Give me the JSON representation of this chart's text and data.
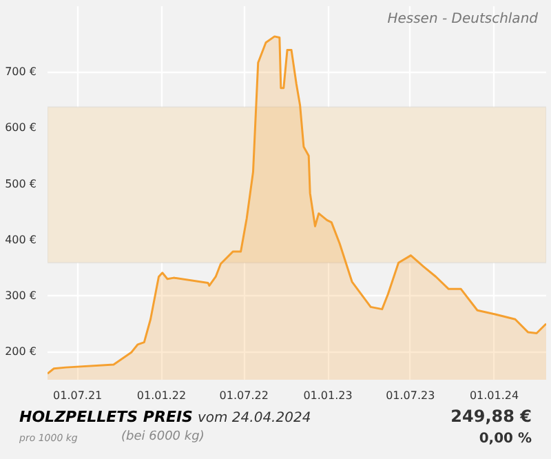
{
  "chart_data": {
    "type": "area",
    "title": "HOLZPELLETS PREIS",
    "subtitle": "vom 24.04.2024",
    "annotations": [
      "Hessen - Deutschland",
      "pro 1000 kg",
      "(bei 6000 kg)",
      "249,88 €",
      "0,00 %"
    ],
    "x": [
      "2021-04-26",
      "2021-05-10",
      "2021-06-05",
      "2021-09-18",
      "2021-10-27",
      "2021-11-10",
      "2021-11-24",
      "2021-12-08",
      "2021-12-26",
      "2022-01-03",
      "2022-01-14",
      "2022-01-28",
      "2022-04-13",
      "2022-04-16",
      "2022-04-30",
      "2022-05-11",
      "2022-06-07",
      "2022-06-24",
      "2022-07-07",
      "2022-07-21",
      "2022-08-01",
      "2022-08-18",
      "2022-09-06",
      "2022-09-17",
      "2022-09-20",
      "2022-09-26",
      "2022-10-04",
      "2022-10-13",
      "2022-10-24",
      "2022-11-01",
      "2022-11-09",
      "2022-11-20",
      "2022-11-23",
      "2022-12-04",
      "2022-12-12",
      "2022-12-30",
      "2023-01-09",
      "2023-01-27",
      "2023-02-23",
      "2023-04-05",
      "2023-04-30",
      "2023-05-13",
      "2023-06-05",
      "2023-07-02",
      "2023-07-30",
      "2023-08-26",
      "2023-09-23",
      "2023-10-20",
      "2023-11-25",
      "2024-01-03",
      "2024-02-16",
      "2024-03-15",
      "2024-04-03",
      "2024-04-24"
    ],
    "series": [
      {
        "color": "#f5a030",
        "values": [
          161,
          170,
          172,
          177,
          199,
          213,
          217,
          258,
          334,
          341,
          330,
          332,
          323,
          318,
          334,
          357,
          379,
          379,
          438,
          521,
          716,
          752,
          763,
          761,
          671,
          671,
          739,
          739,
          678,
          640,
          566,
          550,
          483,
          424,
          447,
          435,
          431,
          393,
          325,
          280,
          276,
          303,
          359,
          372,
          352,
          334,
          312,
          312,
          274,
          267,
          258,
          235,
          233,
          250
        ]
      }
    ],
    "xlim": [
      "2021-04-26",
      "2024-04-24"
    ],
    "ylim": [
      150,
      817
    ],
    "xticks": [
      {
        "value": "2021-07-01",
        "label": "01.07.21"
      },
      {
        "value": "2022-01-01",
        "label": "01.01.22"
      },
      {
        "value": "2022-07-01",
        "label": "01.07.22"
      },
      {
        "value": "2023-01-01",
        "label": "01.01.23"
      },
      {
        "value": "2023-07-01",
        "label": "01.07.23"
      },
      {
        "value": "2024-01-01",
        "label": "01.01.24"
      }
    ],
    "yticks": [
      {
        "value": 200,
        "label": "200 €"
      },
      {
        "value": 300,
        "label": "300 €"
      },
      {
        "value": 400,
        "label": "400 €"
      },
      {
        "value": 500,
        "label": "500 €"
      },
      {
        "value": 600,
        "label": "600 €"
      },
      {
        "value": 700,
        "label": "700 €"
      }
    ],
    "bands": [
      {
        "axis": "y",
        "from": 359,
        "to": 637,
        "color": "#f3e8d6"
      }
    ],
    "grid": true
  }
}
